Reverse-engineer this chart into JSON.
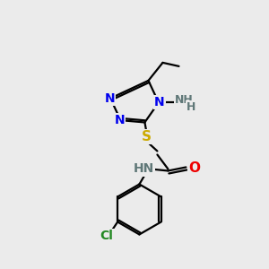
{
  "background_color": "#ebebeb",
  "atom_colors": {
    "C": "#000000",
    "N": "#0000ee",
    "O": "#ee0000",
    "S": "#ccaa00",
    "Cl": "#228822",
    "NH": "#607878",
    "H": "#607878"
  },
  "figsize": [
    3.0,
    3.0
  ],
  "dpi": 100,
  "bond_lw": 1.6,
  "font_size": 10
}
